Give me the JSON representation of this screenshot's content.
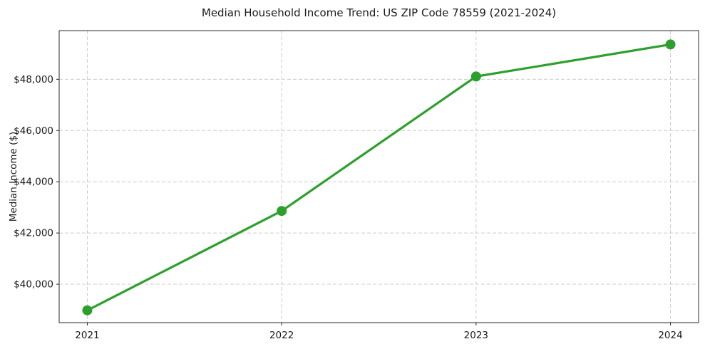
{
  "chart_data": {
    "type": "line",
    "title": "Median Household Income Trend: US ZIP Code 78559 (2021-2024)",
    "xlabel": "",
    "ylabel": "Median Income ($)",
    "categories": [
      "2021",
      "2022",
      "2023",
      "2024"
    ],
    "values": [
      38980,
      42860,
      48110,
      49360
    ],
    "y_ticks": [
      {
        "value": 40000,
        "label": "$40,000"
      },
      {
        "value": 42000,
        "label": "$42,000"
      },
      {
        "value": 44000,
        "label": "$44,000"
      },
      {
        "value": 46000,
        "label": "$46,000"
      },
      {
        "value": 48000,
        "label": "$48,000"
      }
    ],
    "ylim": [
      38500,
      49900
    ],
    "grid": true,
    "grid_style": "dashed",
    "legend_position": "none",
    "marker": "circle",
    "colors": {
      "line": "#2ca02c",
      "marker": "#2ca02c",
      "grid": "#cccccc",
      "spine": "#2b2b2b",
      "text": "#1a1a1a",
      "background": "#ffffff"
    }
  }
}
